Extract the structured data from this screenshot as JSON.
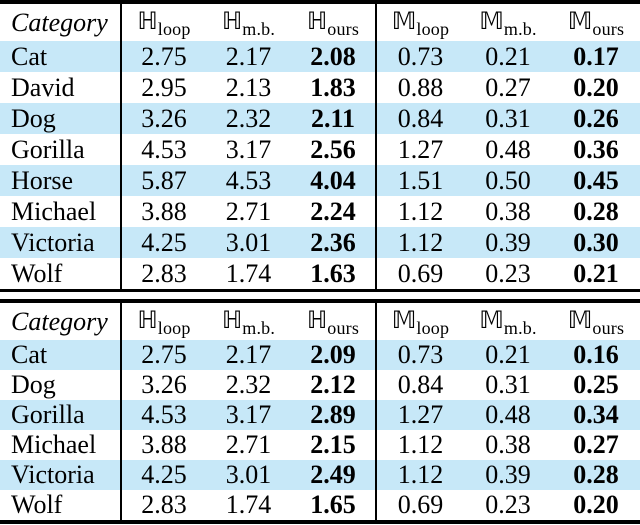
{
  "colors": {
    "row_highlight": "#c7e8f8",
    "rule": "#000000",
    "text": "#000000",
    "background": "#ffffff"
  },
  "header": {
    "category": "Category",
    "metrics": [
      {
        "letter": "ℍ",
        "sub": "loop"
      },
      {
        "letter": "ℍ",
        "sub": "m.b."
      },
      {
        "letter": "ℍ",
        "sub": "ours"
      },
      {
        "letter": "𝕄",
        "sub": "loop"
      },
      {
        "letter": "𝕄",
        "sub": "m.b."
      },
      {
        "letter": "𝕄",
        "sub": "ours"
      }
    ]
  },
  "tables": [
    {
      "name": "results-table-1",
      "rows": [
        {
          "category": "Cat",
          "values": [
            "2.75",
            "2.17",
            "2.08",
            "0.73",
            "0.21",
            "0.17"
          ]
        },
        {
          "category": "David",
          "values": [
            "2.95",
            "2.13",
            "1.83",
            "0.88",
            "0.27",
            "0.20"
          ]
        },
        {
          "category": "Dog",
          "values": [
            "3.26",
            "2.32",
            "2.11",
            "0.84",
            "0.31",
            "0.26"
          ]
        },
        {
          "category": "Gorilla",
          "values": [
            "4.53",
            "3.17",
            "2.56",
            "1.27",
            "0.48",
            "0.36"
          ]
        },
        {
          "category": "Horse",
          "values": [
            "5.87",
            "4.53",
            "4.04",
            "1.51",
            "0.50",
            "0.45"
          ]
        },
        {
          "category": "Michael",
          "values": [
            "3.88",
            "2.71",
            "2.24",
            "1.12",
            "0.38",
            "0.28"
          ]
        },
        {
          "category": "Victoria",
          "values": [
            "4.25",
            "3.01",
            "2.36",
            "1.12",
            "0.39",
            "0.30"
          ]
        },
        {
          "category": "Wolf",
          "values": [
            "2.83",
            "1.74",
            "1.63",
            "0.69",
            "0.23",
            "0.21"
          ]
        }
      ],
      "bold_value_columns": [
        2,
        5
      ]
    },
    {
      "name": "results-table-2",
      "rows": [
        {
          "category": "Cat",
          "values": [
            "2.75",
            "2.17",
            "2.09",
            "0.73",
            "0.21",
            "0.16"
          ]
        },
        {
          "category": "Dog",
          "values": [
            "3.26",
            "2.32",
            "2.12",
            "0.84",
            "0.31",
            "0.25"
          ]
        },
        {
          "category": "Gorilla",
          "values": [
            "4.53",
            "3.17",
            "2.89",
            "1.27",
            "0.48",
            "0.34"
          ]
        },
        {
          "category": "Michael",
          "values": [
            "3.88",
            "2.71",
            "2.15",
            "1.12",
            "0.38",
            "0.27"
          ]
        },
        {
          "category": "Victoria",
          "values": [
            "4.25",
            "3.01",
            "2.49",
            "1.12",
            "0.39",
            "0.28"
          ]
        },
        {
          "category": "Wolf",
          "values": [
            "2.83",
            "1.74",
            "1.65",
            "0.69",
            "0.23",
            "0.20"
          ]
        }
      ],
      "bold_value_columns": [
        2,
        5
      ]
    }
  ]
}
